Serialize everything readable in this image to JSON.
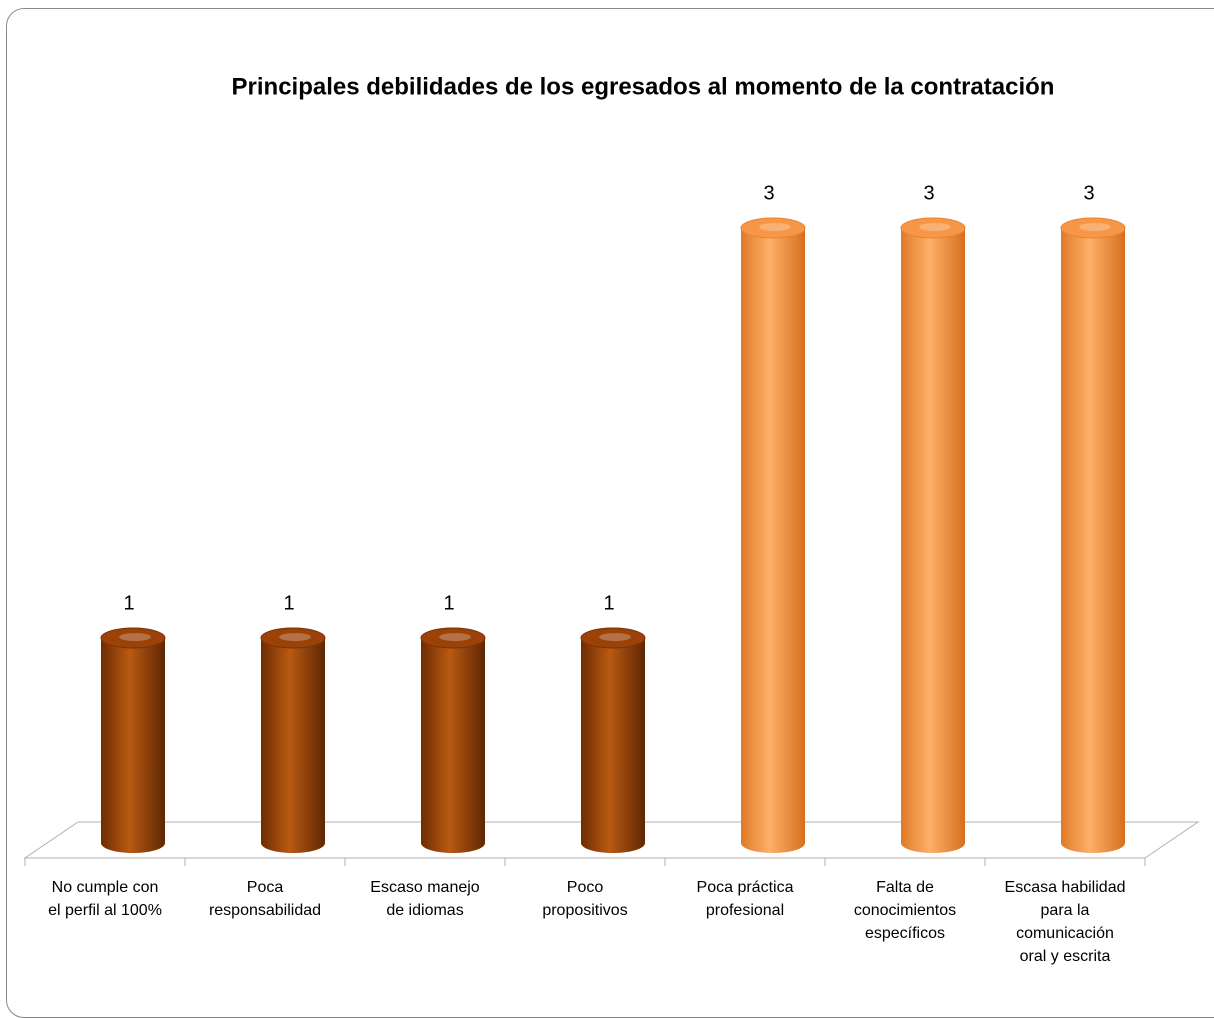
{
  "chart_data": {
    "type": "bar",
    "title": "Principales debilidades de los egresados al momento de la contratación",
    "categories": [
      "No cumple con\nel perfil al 100%",
      "Poca\nresponsabilidad",
      "Escaso manejo\nde idiomas",
      "Poco\npropositivos",
      "Poca práctica\nprofesional",
      "Falta de\nconocimientos\nespecíficos",
      "Escasa habilidad\npara la\ncomunicación\noral y escrita"
    ],
    "values": [
      1,
      1,
      1,
      1,
      3,
      3,
      3
    ],
    "colors": [
      "#9a4207",
      "#9a4207",
      "#9a4207",
      "#9a4207",
      "#f79646",
      "#f79646",
      "#f79646"
    ]
  }
}
